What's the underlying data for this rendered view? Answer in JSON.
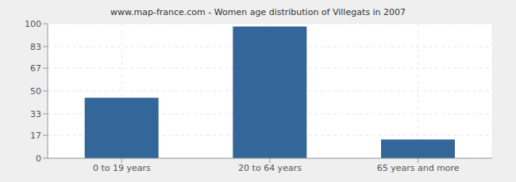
{
  "chart_data": {
    "type": "bar",
    "title": "www.map-france.com - Women age distribution of Villegats in 2007",
    "categories": [
      "0 to 19 years",
      "20 to 64 years",
      "65 years and more"
    ],
    "values": [
      45,
      98,
      14
    ],
    "color": "#336699",
    "ylim": [
      0,
      100
    ],
    "yticks": [
      0,
      17,
      33,
      50,
      67,
      83,
      100
    ],
    "grid": true
  }
}
